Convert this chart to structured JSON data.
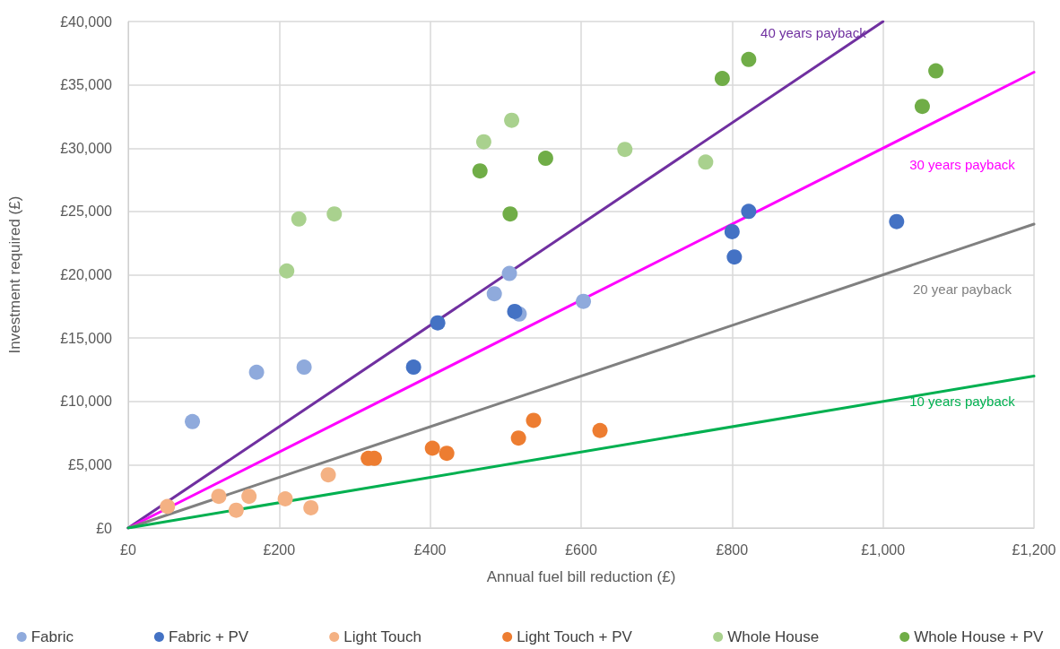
{
  "chart_data": {
    "type": "scatter",
    "xlabel": "Annual fuel bill reduction (£)",
    "ylabel": "Investment required (£)",
    "xlim": [
      0,
      1200
    ],
    "ylim": [
      0,
      40000
    ],
    "xticks": [
      {
        "value": 0,
        "label": "£0"
      },
      {
        "value": 200,
        "label": "£200"
      },
      {
        "value": 400,
        "label": "£400"
      },
      {
        "value": 600,
        "label": "£600"
      },
      {
        "value": 800,
        "label": "£800"
      },
      {
        "value": 1000,
        "label": "£1,000"
      },
      {
        "value": 1200,
        "label": "£1,200"
      }
    ],
    "yticks": [
      {
        "value": 0,
        "label": "£0"
      },
      {
        "value": 5000,
        "label": "£5,000"
      },
      {
        "value": 10000,
        "label": "£10,000"
      },
      {
        "value": 15000,
        "label": "£15,000"
      },
      {
        "value": 20000,
        "label": "£20,000"
      },
      {
        "value": 25000,
        "label": "£25,000"
      },
      {
        "value": 30000,
        "label": "£30,000"
      },
      {
        "value": 35000,
        "label": "£35,000"
      },
      {
        "value": 40000,
        "label": "£40,000"
      }
    ],
    "grid": true,
    "legend": "bottom",
    "marker": "circle",
    "series": [
      {
        "name": "40 years payback",
        "type": "line",
        "marker": "none",
        "line_style": "solid",
        "color": "#7030a0",
        "x": [
          0,
          1000
        ],
        "values": [
          0,
          40000
        ]
      },
      {
        "name": "30 years payback",
        "type": "line",
        "marker": "none",
        "line_style": "solid",
        "color": "#ff00ff",
        "x": [
          0,
          1200
        ],
        "values": [
          0,
          36000
        ]
      },
      {
        "name": "20 year payback",
        "type": "line",
        "marker": "none",
        "line_style": "solid",
        "color": "#808080",
        "x": [
          0,
          1200
        ],
        "values": [
          0,
          24000
        ]
      },
      {
        "name": "10 years payback",
        "type": "line",
        "marker": "none",
        "line_style": "solid",
        "color": "#00b050",
        "x": [
          0,
          1200
        ],
        "values": [
          0,
          12000
        ]
      },
      {
        "name": "Fabric",
        "color": "#8faadc",
        "x": [
          85,
          170,
          233,
          485,
          505,
          518,
          603
        ],
        "values": [
          8400,
          12300,
          12700,
          18500,
          20100,
          16900,
          17900
        ]
      },
      {
        "name": "Fabric + PV",
        "color": "#4472c4",
        "x": [
          378,
          410,
          512,
          800,
          803,
          822,
          1018
        ],
        "values": [
          12700,
          16200,
          17100,
          23400,
          21400,
          25000,
          24200
        ]
      },
      {
        "name": "Light Touch",
        "color": "#f4b183",
        "x": [
          52,
          120,
          160,
          208,
          143,
          242,
          265
        ],
        "values": [
          1700,
          2500,
          2500,
          2300,
          1400,
          1600,
          4200
        ]
      },
      {
        "name": "Light Touch + PV",
        "color": "#ed7d31",
        "x": [
          318,
          326,
          403,
          422,
          517,
          537,
          625
        ],
        "values": [
          5500,
          5500,
          6300,
          5900,
          7100,
          8500,
          7700
        ]
      },
      {
        "name": "Whole House",
        "color": "#a9d18e",
        "x": [
          210,
          226,
          273,
          471,
          508,
          658,
          765
        ],
        "values": [
          20300,
          24400,
          24800,
          30500,
          32200,
          29900,
          28900
        ]
      },
      {
        "name": "Whole House + PV",
        "color": "#70ad47",
        "x": [
          466,
          506,
          553,
          787,
          822,
          1052,
          1070
        ],
        "values": [
          28200,
          24800,
          29200,
          35500,
          37000,
          33300,
          36100
        ]
      }
    ]
  }
}
